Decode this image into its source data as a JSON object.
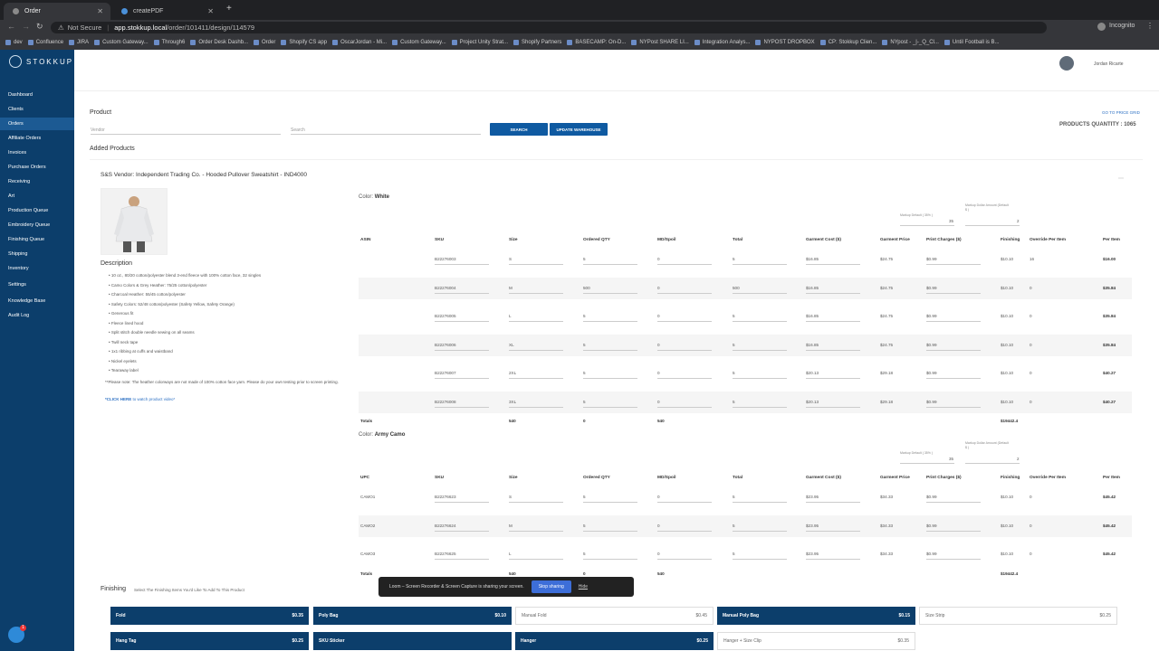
{
  "browser": {
    "tabs": [
      {
        "label": "Order"
      },
      {
        "label": "createPDF"
      }
    ],
    "not_secure": "Not Secure",
    "url_host": "app.stokkup.local",
    "url_path": "/order/101411/design/114579",
    "incognito": "Incognito",
    "bookmarks": [
      "dev",
      "Confluence",
      "JIRA",
      "Custom Gateway...",
      "Through6",
      "Order Desk Dashb...",
      "Order",
      "Shopify CS app",
      "OscarJordan - Mi...",
      "Custom Gateway...",
      "Project Unity Strat...",
      "Shopify Partners",
      "BASECAMP: On-D...",
      "NYPost SHARE LI...",
      "Integration Analys...",
      "NYPOST DROPBOX",
      "CP: Stokkup Clien...",
      "NYpost - _|-_Q_Cl...",
      "Until Football is B..."
    ]
  },
  "sidebar": {
    "logo": "STOKKUP",
    "items": [
      "Dashboard",
      "Clients",
      "Orders",
      "Affiliate Orders",
      "Invoices",
      "Purchase Orders",
      "Receiving",
      "Art",
      "Production Queue",
      "Embroidery Queue",
      "Finishing Queue",
      "Shipping",
      "Inventory",
      "Settings",
      "Knowledge Base",
      "Audit Log"
    ]
  },
  "user": {
    "name": "Jordan Ricarte"
  },
  "product": {
    "title": "Product",
    "vendor_placeholder": "Vendor",
    "search_placeholder": "Search",
    "search_btn": "SEARCH",
    "update_btn": "UPDATE WAREHOUSE",
    "price_grid": "GO TO PRICE GRID",
    "quantity": "PRODUCTS QUANTITY : 1065",
    "added": "Added Products"
  },
  "item": {
    "title": "S&S Vendor: Independent Trading Co. - Hooded Pullover Sweatshirt - IND4000",
    "description_title": "Description",
    "description": [
      "10 oz., 80/20 cotton/polyester blend 3-end fleece with 100% cotton face, 32 singles",
      "Camo Colors & Grey Heather: 75/25 cotton/polyester",
      "Charcoal Heather: 55/45 cotton/polyester",
      "Safety Colors: 52/48 cotton/polyester (Safety Yellow, Safety Orange)",
      "Generous fit",
      "Fleece lined hood",
      "Split stitch double needle sewing on all seams",
      "Twill neck tape",
      "1x1 ribbing at cuffs and waistband",
      "Nickel eyelets",
      "Tearaway label"
    ],
    "note": "**Please note: The heather colorways are not made of 100% cotton face yarn. Please do your own testing prior to screen printing.",
    "video_click": "*CLICK HERE",
    "video_rest": " to watch product video*"
  },
  "colors": [
    {
      "label": "Color:",
      "name": "White",
      "markup_label": "Markup Default ( 35% )",
      "markup_value": "35",
      "dollar_label": "Markup Dollar Amount (Default $ )",
      "dollar_value": "2",
      "headers": [
        "ASIN",
        "SKU",
        "Size",
        "Ordered QTY",
        "MD/Spoil",
        "Total",
        "Garment Cost ($)",
        "Garment Price",
        "Print Charges ($)",
        "Finishing",
        "Override Per Item",
        "Per Item"
      ],
      "rows": [
        [
          "",
          "B22276003",
          "S",
          "5",
          "0",
          "5",
          "$16.85",
          "$24.75",
          "$0.99",
          "$10.10",
          "16",
          "$16.00"
        ],
        [
          "",
          "B22276004",
          "M",
          "500",
          "0",
          "500",
          "$16.85",
          "$24.75",
          "$0.99",
          "$10.10",
          "0",
          "$35.84"
        ],
        [
          "",
          "B22276005",
          "L",
          "5",
          "0",
          "5",
          "$16.85",
          "$24.75",
          "$0.99",
          "$10.10",
          "0",
          "$35.84"
        ],
        [
          "",
          "B22276006",
          "XL",
          "5",
          "0",
          "5",
          "$16.85",
          "$24.75",
          "$0.99",
          "$10.10",
          "0",
          "$35.84"
        ],
        [
          "",
          "B22276007",
          "2XL",
          "5",
          "0",
          "5",
          "$20.13",
          "$29.18",
          "$0.99",
          "$10.10",
          "0",
          "$40.27"
        ],
        [
          "",
          "B22276008",
          "3XL",
          "5",
          "0",
          "5",
          "$20.13",
          "$29.18",
          "$0.99",
          "$10.10",
          "0",
          "$40.27"
        ]
      ],
      "totals": {
        "label": "Totals",
        "qty": "540",
        "md": "0",
        "total": "540",
        "finishing": "$19442.4"
      }
    },
    {
      "label": "Color:",
      "name": "Army Camo",
      "markup_label": "Markup Default ( 35% )",
      "markup_value": "35",
      "dollar_label": "Markup Dollar Amount (Default $ )",
      "dollar_value": "2",
      "headers": [
        "UPC",
        "SKU",
        "Size",
        "Ordered QTY",
        "MD/Spoil",
        "Total",
        "Garment Cost ($)",
        "Garment Price",
        "Print Charges ($)",
        "Finishing",
        "Override Per Item",
        "Per Item"
      ],
      "rows": [
        [
          "CAMO1",
          "B22276623",
          "S",
          "5",
          "0",
          "5",
          "$23.95",
          "$34.33",
          "$0.99",
          "$10.10",
          "0",
          "$45.42"
        ],
        [
          "CAMO2",
          "B22276624",
          "M",
          "5",
          "0",
          "5",
          "$23.95",
          "$34.33",
          "$0.99",
          "$10.10",
          "0",
          "$45.42"
        ],
        [
          "CAMO3",
          "B22276625",
          "L",
          "5",
          "0",
          "5",
          "$23.95",
          "$34.33",
          "$0.99",
          "$10.10",
          "0",
          "$45.42"
        ]
      ],
      "totals": {
        "label": "Totals",
        "qty": "540",
        "md": "0",
        "total": "540",
        "finishing": "$19442.4"
      }
    }
  ],
  "finishing": {
    "title": "Finishing",
    "subtitle": "Select The Finishing Items You'd Like To Add To This Product",
    "items": [
      {
        "label": "Fold",
        "price": "$0.35",
        "on": true
      },
      {
        "label": "Poly Bag",
        "price": "$0.10",
        "on": true
      },
      {
        "label": "Manual Fold",
        "price": "$0.45",
        "on": false
      },
      {
        "label": "Manual Poly Bag",
        "price": "$0.15",
        "on": true
      },
      {
        "label": "Size Strip",
        "price": "$0.25",
        "on": false
      },
      {
        "label": "Hang Tag",
        "price": "$0.25",
        "on": true
      },
      {
        "label": "SKU Sticker",
        "price": "",
        "on": true
      },
      {
        "label": "Hanger",
        "price": "$0.25",
        "on": true
      },
      {
        "label": "Hanger + Size Clip",
        "price": "$0.35",
        "on": false
      }
    ]
  },
  "loom": {
    "text": "Loom – Screen Recorder & Screen Capture is sharing your screen.",
    "stop": "Stop sharing",
    "hide": "Hide"
  }
}
